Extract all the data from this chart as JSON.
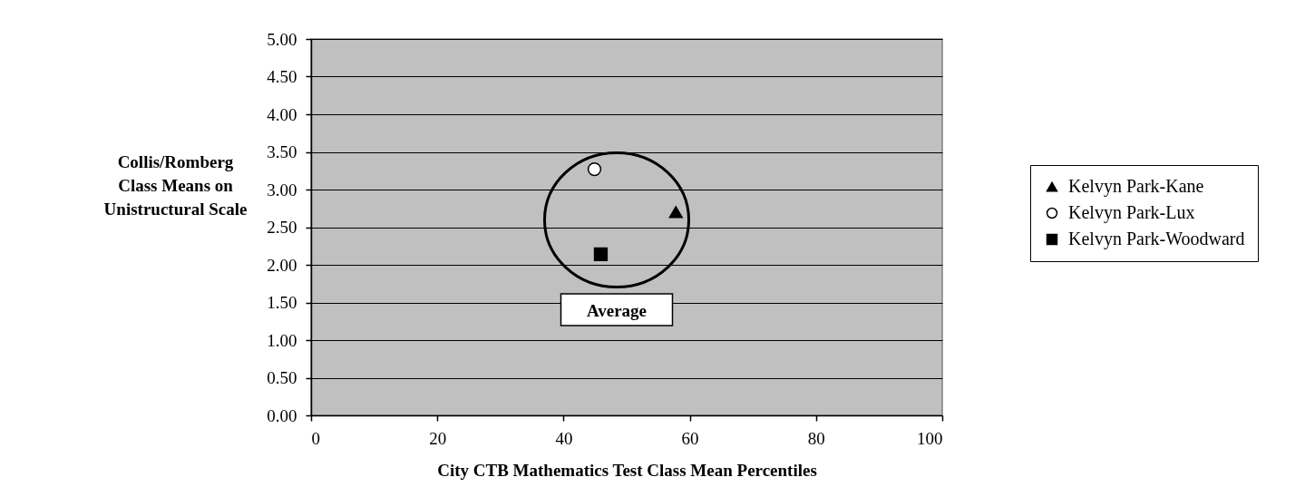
{
  "chart_data": {
    "type": "scatter",
    "xlabel": "City CTB Mathematics Test Class Mean Percentiles",
    "ylabel": "Collis/Romberg Class Means on Unistructural Scale",
    "xlim": [
      0,
      100
    ],
    "xticks": [
      0,
      20,
      40,
      60,
      80,
      100
    ],
    "ylim": [
      0,
      5
    ],
    "yticks": [
      {
        "value": 0,
        "label": "0.00"
      },
      {
        "value": 0.5,
        "label": "0.50"
      },
      {
        "value": 1,
        "label": "1.00"
      },
      {
        "value": 1.5,
        "label": "1.50"
      },
      {
        "value": 2,
        "label": "2.00"
      },
      {
        "value": 2.5,
        "label": "2.50"
      },
      {
        "value": 3,
        "label": "3.00"
      },
      {
        "value": 3.5,
        "label": "3.50"
      },
      {
        "value": 4,
        "label": "4.00"
      },
      {
        "value": 4.5,
        "label": "4.50"
      },
      {
        "value": 5,
        "label": "5.00"
      }
    ],
    "grid": "y",
    "legend": "right",
    "series": [
      {
        "name": "Kelvyn Park-Kane",
        "color": "#000000",
        "marker": "triangle",
        "x": [
          57.8
        ],
        "values": [
          2.7
        ]
      },
      {
        "name": "Kelvyn Park-Lux",
        "color": "#ffffff",
        "marker": "circle",
        "x": [
          44.9
        ],
        "values": [
          3.27
        ]
      },
      {
        "name": "Kelvyn Park-Woodward",
        "color": "#000000",
        "marker": "square",
        "x": [
          45.9
        ],
        "values": [
          2.14
        ]
      }
    ],
    "annotations": [
      "Average"
    ]
  }
}
